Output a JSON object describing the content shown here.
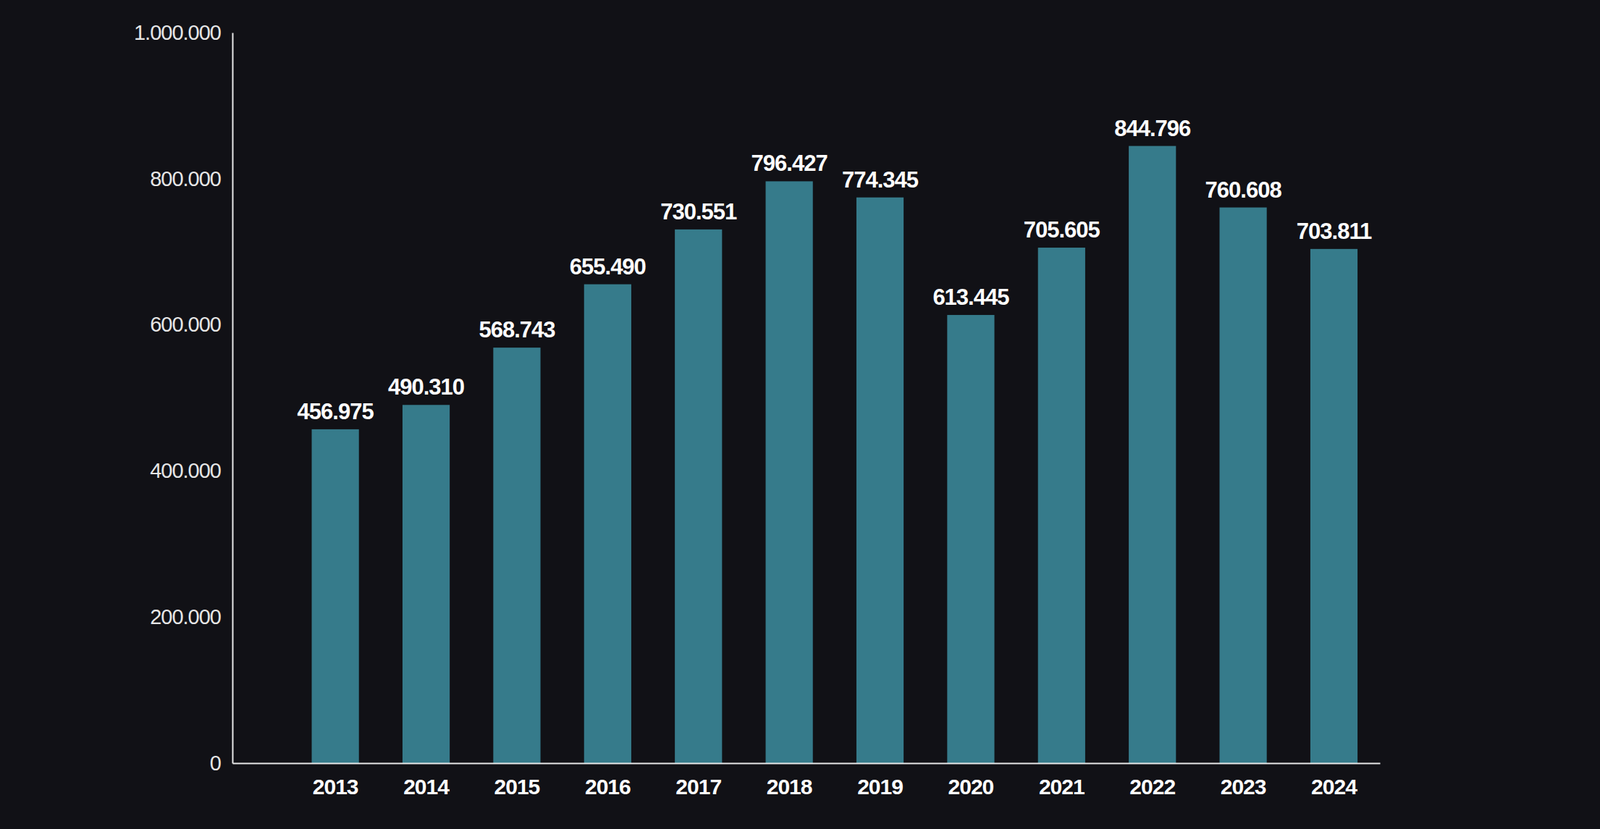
{
  "chart_data": {
    "type": "bar",
    "categories": [
      "2013",
      "2014",
      "2015",
      "2016",
      "2017",
      "2018",
      "2019",
      "2020",
      "2021",
      "2022",
      "2023",
      "2024"
    ],
    "values": [
      456975,
      490310,
      568743,
      655490,
      730551,
      796427,
      774345,
      613445,
      705605,
      844796,
      760608,
      703811
    ],
    "value_labels": [
      "456.975",
      "490.310",
      "568.743",
      "655.490",
      "730.551",
      "796.427",
      "774.345",
      "613.445",
      "705.605",
      "844.796",
      "760.608",
      "703.811"
    ],
    "color": "#367b8b",
    "ylim": [
      0,
      1000000
    ],
    "yticks": [
      0,
      {
        "value": 200000,
        "label": "200.000"
      },
      {
        "value": 400000,
        "label": "400.000"
      },
      {
        "value": 600000,
        "label": "600.000"
      },
      {
        "value": 800000,
        "label": "800.000"
      },
      {
        "value": 1000000,
        "label": "1.000.000"
      }
    ],
    "grid": false,
    "data_labels": true
  }
}
